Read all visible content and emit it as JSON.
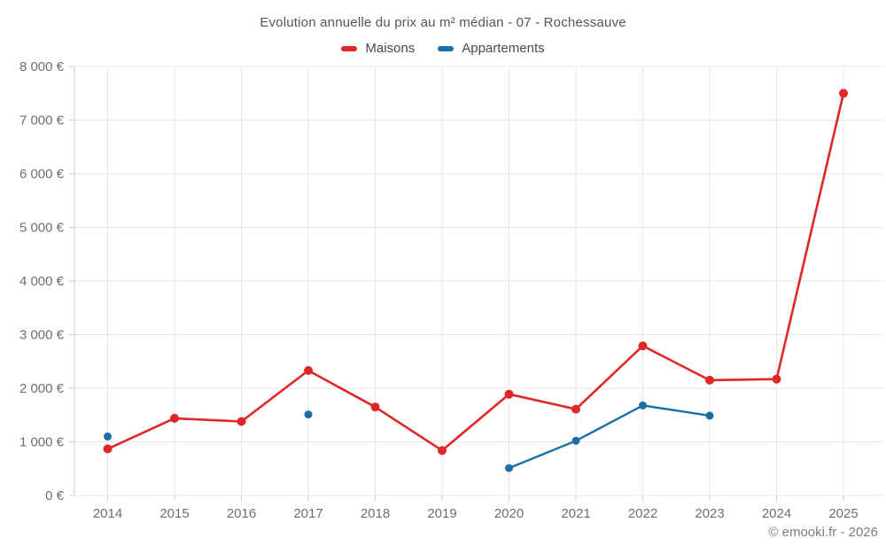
{
  "title": "Evolution annuelle du prix au m² médian - 07 - Rochessauve",
  "footer": {
    "credit": "© emooki.fr - 2026"
  },
  "colors": {
    "background": "#ffffff",
    "grid": "#e7e7e7",
    "axis": "#cccccc",
    "tick_text": "#6e6e6e",
    "title_text": "#555555",
    "legend_text": "#4b4b4b",
    "footer_text": "#7c7c7c",
    "maisons": "#df2727",
    "appartements": "#1a6fa8"
  },
  "chart_data": {
    "type": "line",
    "title": "Evolution annuelle du prix au m² médian - 07 - Rochessauve",
    "xlabel": "",
    "ylabel": "",
    "currency": "€",
    "grid": true,
    "legend_position": "top",
    "categories": [
      "2014",
      "2015",
      "2016",
      "2017",
      "2018",
      "2019",
      "2020",
      "2021",
      "2022",
      "2023",
      "2024",
      "2025"
    ],
    "series": [
      {
        "name": "Maisons",
        "color": "#df2727",
        "values": [
          870,
          1440,
          1380,
          2330,
          1650,
          840,
          1890,
          1610,
          2790,
          2150,
          2170,
          7500
        ]
      },
      {
        "name": "Appartements",
        "color": "#1a6fa8",
        "values": [
          1100,
          null,
          null,
          1510,
          null,
          null,
          510,
          1020,
          1680,
          1490,
          null,
          null
        ]
      }
    ],
    "ylim": [
      0,
      8000
    ],
    "y_ticks": {
      "values": [
        0,
        1000,
        2000,
        3000,
        4000,
        5000,
        6000,
        7000,
        8000
      ],
      "labels": [
        "0 €",
        "1 000 €",
        "2 000 €",
        "3 000 €",
        "4 000 €",
        "5 000 €",
        "6 000 €",
        "7 000 €",
        "8 000 €"
      ]
    }
  }
}
